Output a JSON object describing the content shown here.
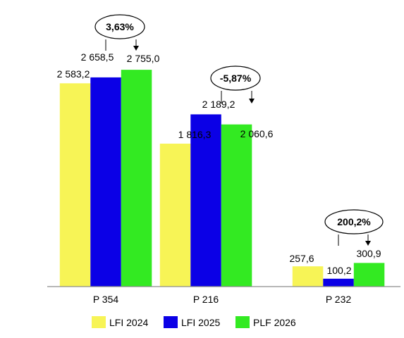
{
  "chart_data": {
    "type": "bar",
    "categories": [
      "P 354",
      "P 216",
      "P 232"
    ],
    "series": [
      {
        "name": "LFI 2024",
        "color": "#f7f456",
        "values": [
          2583.2,
          1816.3,
          257.6
        ]
      },
      {
        "name": "LFI 2025",
        "color": "#0b00e6",
        "values": [
          2658.5,
          2189.2,
          100.2
        ]
      },
      {
        "name": "PLF 2026",
        "color": "#33ea22",
        "values": [
          2755.0,
          2060.6,
          300.9
        ]
      }
    ],
    "data_labels": [
      [
        "2 583,2",
        "1 816,3",
        "257,6"
      ],
      [
        "2 658,5",
        "2 189,2",
        "100,2"
      ],
      [
        "2 755,0",
        "2 060,6",
        "300,9"
      ]
    ],
    "change_annotations": [
      "3,63%",
      "-5,87%",
      "200,2%"
    ],
    "ylim": [
      0,
      3150
    ],
    "grid": false,
    "legend_position": "bottom",
    "title": "",
    "xlabel": "",
    "ylabel": ""
  }
}
